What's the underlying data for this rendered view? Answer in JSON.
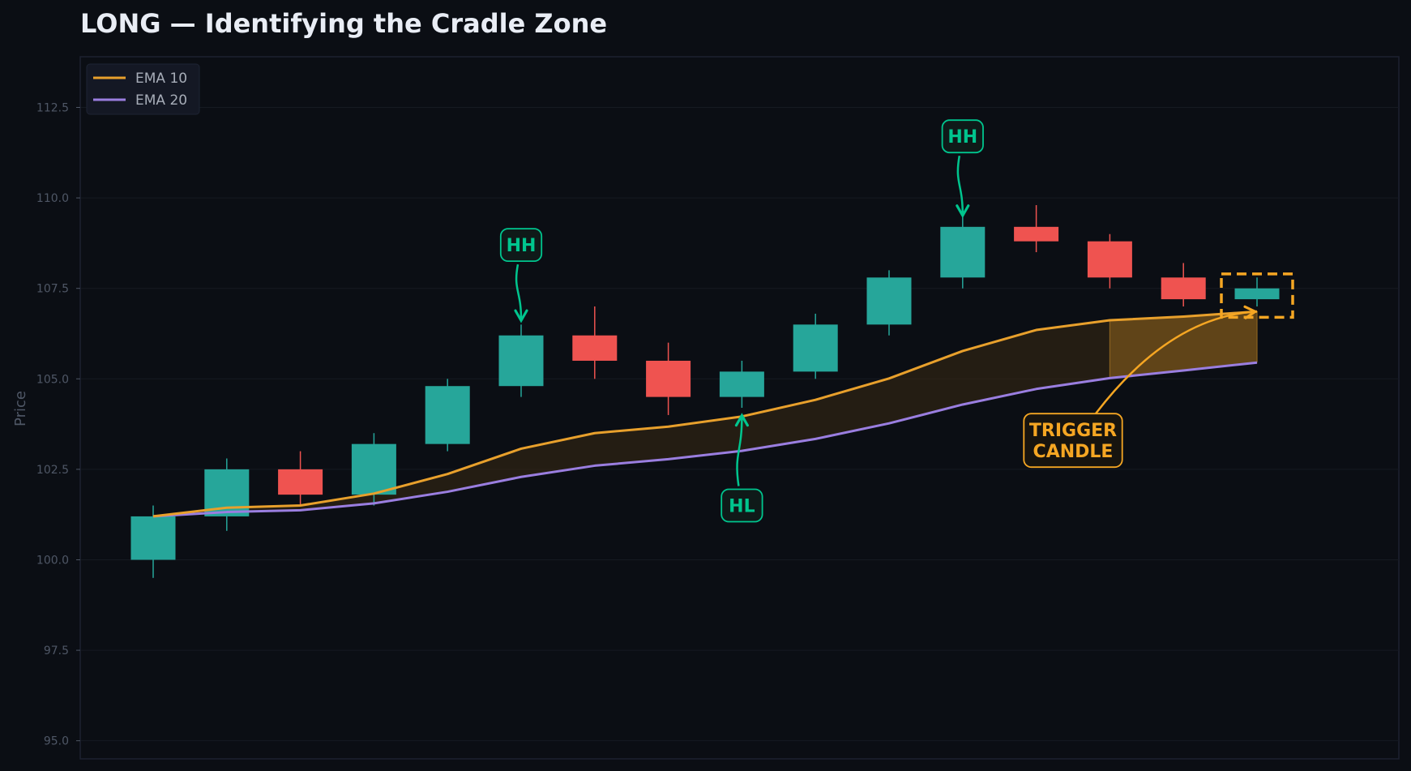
{
  "chart_data": {
    "type": "candlestick",
    "title": "LONG — Identifying the Cradle Zone",
    "ylabel": "Price",
    "xlabel": "",
    "ylim": [
      94.5,
      113.9
    ],
    "yticks": [
      "95.0",
      "97.5",
      "100.0",
      "102.5",
      "105.0",
      "107.5",
      "110.0",
      "112.5"
    ],
    "ytick_values": [
      95.0,
      97.5,
      100.0,
      102.5,
      105.0,
      107.5,
      110.0,
      112.5
    ],
    "grid": true,
    "legend_position": "top-left",
    "colors": {
      "background": "#0b0e14",
      "bull": "#26a69a",
      "bear": "#ef5350",
      "ema10": "#e8a02c",
      "ema20": "#9a7ee0",
      "annotation_green": "#00c58e",
      "annotation_orange": "#f5a623",
      "cradle_fill": "#3a2a12",
      "cradle_highlight": "#6b4b1a",
      "grid": "#161a22",
      "axis_text": "#4f5766",
      "frame": "#1c2130"
    },
    "candles": [
      {
        "open": 100.0,
        "close": 101.2,
        "high": 101.5,
        "low": 99.5
      },
      {
        "open": 101.2,
        "close": 102.5,
        "high": 102.8,
        "low": 100.8
      },
      {
        "open": 102.5,
        "close": 101.8,
        "high": 103.0,
        "low": 101.5
      },
      {
        "open": 101.8,
        "close": 103.2,
        "high": 103.5,
        "low": 101.5
      },
      {
        "open": 103.2,
        "close": 104.8,
        "high": 105.0,
        "low": 103.0
      },
      {
        "open": 104.8,
        "close": 106.2,
        "high": 106.5,
        "low": 104.5
      },
      {
        "open": 106.2,
        "close": 105.5,
        "high": 107.0,
        "low": 105.0
      },
      {
        "open": 105.5,
        "close": 104.5,
        "high": 106.0,
        "low": 104.0
      },
      {
        "open": 104.5,
        "close": 105.2,
        "high": 105.5,
        "low": 104.2
      },
      {
        "open": 105.2,
        "close": 106.5,
        "high": 106.8,
        "low": 105.0
      },
      {
        "open": 106.5,
        "close": 107.8,
        "high": 108.0,
        "low": 106.2
      },
      {
        "open": 107.8,
        "close": 109.2,
        "high": 109.5,
        "low": 107.5
      },
      {
        "open": 109.2,
        "close": 108.8,
        "high": 109.8,
        "low": 108.5
      },
      {
        "open": 108.8,
        "close": 107.8,
        "high": 109.0,
        "low": 107.5
      },
      {
        "open": 107.8,
        "close": 107.2,
        "high": 108.2,
        "low": 107.0
      },
      {
        "open": 107.2,
        "close": 107.5,
        "high": 107.8,
        "low": 107.0
      }
    ],
    "series": [
      {
        "name": "EMA 10",
        "values": [
          101.2,
          101.44,
          101.5,
          101.83,
          102.37,
          103.07,
          103.5,
          103.68,
          103.96,
          104.42,
          105.01,
          105.77,
          106.35,
          106.62,
          106.72,
          106.86
        ]
      },
      {
        "name": "EMA 20",
        "values": [
          101.2,
          101.32,
          101.37,
          101.56,
          101.88,
          102.29,
          102.6,
          102.78,
          103.01,
          103.34,
          103.77,
          104.29,
          104.72,
          105.02,
          105.23,
          105.45
        ]
      }
    ],
    "cradle_highlight_start_index": 13,
    "trigger_box": {
      "index": 15,
      "low": 106.7,
      "high": 107.9
    },
    "annotations": [
      {
        "text": "HH",
        "color": "green",
        "label_index": 5,
        "label_price": 108.7,
        "target_index": 5,
        "target_price": 106.65
      },
      {
        "text": "HL",
        "color": "green",
        "label_index": 8,
        "label_price": 101.5,
        "target_index": 8,
        "target_price": 103.95
      },
      {
        "text": "HH",
        "color": "green",
        "label_index": 11,
        "label_price": 111.7,
        "target_index": 11,
        "target_price": 109.55
      },
      {
        "text": "TRIGGER\nCANDLE",
        "lines": [
          "TRIGGER",
          "CANDLE"
        ],
        "color": "orange",
        "label_index": 12.5,
        "label_price": 103.3,
        "target_index": 15,
        "target_price": 106.9
      }
    ]
  }
}
